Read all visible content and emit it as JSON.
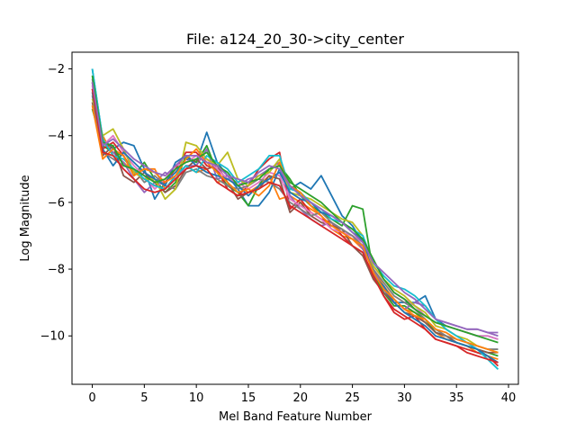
{
  "chart_data": {
    "type": "line",
    "title": "File: a124_20_30->city_center",
    "xlabel": "Mel Band Feature Number",
    "ylabel": "Log Magnitude",
    "xlim": [
      -1.95,
      40.95
    ],
    "ylim": [
      -11.45,
      -1.5
    ],
    "x_ticks": [
      0,
      5,
      10,
      15,
      20,
      25,
      30,
      35,
      40
    ],
    "y_ticks": [
      -10,
      -8,
      -6,
      -4,
      -2
    ],
    "x_tick_labels": [
      "0",
      "5",
      "10",
      "15",
      "20",
      "25",
      "30",
      "35",
      "40"
    ],
    "y_tick_labels": [
      "−10",
      "−8",
      "−6",
      "−4",
      "−2"
    ],
    "grid": false,
    "legend": "none",
    "colors": [
      "#1f77b4",
      "#ff7f0e",
      "#2ca02c",
      "#d62728",
      "#9467bd",
      "#8c564b",
      "#e377c2",
      "#7f7f7f",
      "#bcbd22",
      "#17becf"
    ],
    "x": [
      0,
      1,
      2,
      3,
      4,
      5,
      6,
      7,
      8,
      9,
      10,
      11,
      12,
      13,
      14,
      15,
      16,
      17,
      18,
      19,
      20,
      21,
      22,
      23,
      24,
      25,
      26,
      27,
      28,
      29,
      30,
      31,
      32,
      33,
      34,
      35,
      36,
      37,
      38,
      39
    ],
    "series": [
      {
        "values": [
          -2.0,
          -4.1,
          -4.4,
          -4.2,
          -4.3,
          -5.0,
          -5.9,
          -5.4,
          -5.1,
          -4.7,
          -4.8,
          -3.9,
          -4.8,
          -5.2,
          -5.6,
          -6.1,
          -6.1,
          -5.7,
          -5.0,
          -5.6,
          -5.4,
          -5.6,
          -5.2,
          -5.8,
          -6.4,
          -6.7,
          -7.2,
          -8.1,
          -8.6,
          -9.0,
          -9.0,
          -9.0,
          -8.8,
          -9.5,
          -9.7,
          -9.8,
          -9.9,
          -10.0,
          -10.0,
          -10.1
        ]
      },
      {
        "values": [
          -2.6,
          -4.0,
          -4.6,
          -4.8,
          -5.1,
          -5.0,
          -5.0,
          -5.6,
          -5.2,
          -4.9,
          -5.1,
          -5.0,
          -5.4,
          -5.3,
          -5.5,
          -5.7,
          -5.5,
          -5.2,
          -5.9,
          -5.8,
          -6.0,
          -6.2,
          -6.4,
          -6.8,
          -7.0,
          -7.1,
          -7.4,
          -8.0,
          -8.5,
          -8.9,
          -9.2,
          -9.3,
          -9.6,
          -9.9,
          -10.1,
          -10.2,
          -10.3,
          -10.5,
          -10.6,
          -10.7
        ]
      },
      {
        "values": [
          -3.2,
          -4.3,
          -4.5,
          -4.6,
          -5.2,
          -4.8,
          -5.3,
          -5.7,
          -5.4,
          -4.6,
          -4.8,
          -4.3,
          -5.1,
          -5.5,
          -5.7,
          -6.1,
          -5.5,
          -5.0,
          -4.9,
          -5.3,
          -5.8,
          -6.1,
          -6.3,
          -6.5,
          -6.7,
          -6.1,
          -6.2,
          -8.1,
          -8.7,
          -9.1,
          -9.1,
          -9.3,
          -9.5,
          -9.9,
          -10.0,
          -10.2,
          -10.3,
          -10.4,
          -10.5,
          -10.6
        ]
      },
      {
        "values": [
          -2.4,
          -4.4,
          -4.2,
          -4.6,
          -5.1,
          -5.3,
          -5.5,
          -5.4,
          -5.0,
          -4.5,
          -4.5,
          -4.9,
          -5.0,
          -5.6,
          -5.8,
          -5.5,
          -5.0,
          -4.7,
          -4.5,
          -6.2,
          -5.9,
          -6.3,
          -6.5,
          -6.6,
          -7.0,
          -7.3,
          -7.5,
          -8.2,
          -8.8,
          -9.3,
          -9.5,
          -9.4,
          -9.8,
          -10.1,
          -10.2,
          -10.3,
          -10.4,
          -10.5,
          -10.6,
          -10.9
        ]
      },
      {
        "values": [
          -2.3,
          -4.2,
          -4.5,
          -4.8,
          -5.3,
          -5.7,
          -5.4,
          -5.1,
          -5.3,
          -4.9,
          -4.9,
          -4.4,
          -5.3,
          -5.2,
          -5.5,
          -5.3,
          -5.2,
          -5.0,
          -4.8,
          -5.8,
          -6.2,
          -6.5,
          -6.7,
          -6.6,
          -6.9,
          -7.0,
          -7.4,
          -8.0,
          -8.6,
          -8.9,
          -9.2,
          -9.0,
          -9.1,
          -9.5,
          -9.6,
          -9.7,
          -9.8,
          -9.8,
          -9.9,
          -10.0
        ]
      },
      {
        "values": [
          -3.0,
          -4.6,
          -4.3,
          -5.2,
          -5.4,
          -5.1,
          -5.4,
          -5.7,
          -5.5,
          -5.0,
          -4.7,
          -5.0,
          -4.9,
          -5.4,
          -5.9,
          -5.7,
          -5.6,
          -5.2,
          -5.3,
          -6.3,
          -6.0,
          -6.4,
          -6.6,
          -6.7,
          -6.8,
          -7.3,
          -7.6,
          -8.3,
          -8.7,
          -9.0,
          -9.3,
          -9.4,
          -9.6,
          -9.9,
          -10.0,
          -10.2,
          -10.3,
          -10.4,
          -10.5,
          -10.5
        ]
      },
      {
        "values": [
          -2.5,
          -4.3,
          -4.0,
          -4.5,
          -4.9,
          -5.2,
          -5.6,
          -5.3,
          -4.9,
          -4.8,
          -4.6,
          -4.7,
          -5.0,
          -5.3,
          -5.4,
          -5.6,
          -5.4,
          -5.1,
          -5.2,
          -5.9,
          -6.1,
          -6.3,
          -6.5,
          -6.8,
          -6.9,
          -7.0,
          -7.2,
          -7.9,
          -8.3,
          -8.7,
          -8.9,
          -9.1,
          -9.4,
          -9.6,
          -9.7,
          -9.8,
          -9.9,
          -10.0,
          -10.0,
          -10.1
        ]
      },
      {
        "values": [
          -2.8,
          -4.5,
          -4.7,
          -4.9,
          -5.0,
          -5.4,
          -5.2,
          -5.5,
          -5.6,
          -5.1,
          -5.0,
          -5.2,
          -5.3,
          -5.5,
          -5.6,
          -5.5,
          -5.3,
          -5.4,
          -5.6,
          -6.0,
          -6.2,
          -6.4,
          -6.3,
          -6.6,
          -6.8,
          -7.0,
          -7.3,
          -8.0,
          -8.4,
          -8.8,
          -9.0,
          -9.2,
          -9.5,
          -9.8,
          -10.0,
          -10.1,
          -10.2,
          -10.3,
          -10.4,
          -10.4
        ]
      },
      {
        "values": [
          -2.9,
          -4.0,
          -3.8,
          -4.4,
          -5.1,
          -5.3,
          -5.3,
          -5.9,
          -5.6,
          -4.2,
          -4.3,
          -4.7,
          -4.9,
          -4.5,
          -5.3,
          -5.5,
          -5.2,
          -5.1,
          -4.7,
          -5.7,
          -5.8,
          -5.9,
          -6.1,
          -6.3,
          -6.5,
          -6.6,
          -7.0,
          -7.9,
          -8.3,
          -8.6,
          -8.8,
          -9.1,
          -9.3,
          -9.7,
          -9.8,
          -10.0,
          -10.1,
          -10.3,
          -10.4,
          -10.5
        ]
      },
      {
        "values": [
          -2.0,
          -4.1,
          -4.6,
          -4.7,
          -5.0,
          -5.3,
          -5.5,
          -5.6,
          -5.2,
          -4.9,
          -5.1,
          -4.6,
          -4.8,
          -5.0,
          -5.4,
          -5.2,
          -5.0,
          -4.6,
          -4.6,
          -5.6,
          -5.7,
          -6.0,
          -6.2,
          -6.5,
          -6.6,
          -6.8,
          -7.0,
          -7.8,
          -8.2,
          -8.5,
          -8.6,
          -8.8,
          -9.1,
          -9.5,
          -9.8,
          -10.0,
          -10.2,
          -10.4,
          -10.7,
          -11.0
        ]
      },
      {
        "values": [
          -2.7,
          -4.4,
          -4.9,
          -4.5,
          -4.8,
          -5.1,
          -5.3,
          -5.5,
          -4.8,
          -4.6,
          -4.9,
          -5.1,
          -5.2,
          -5.3,
          -5.5,
          -5.8,
          -5.5,
          -5.3,
          -5.1,
          -5.7,
          -5.9,
          -6.0,
          -6.3,
          -6.4,
          -6.6,
          -6.9,
          -7.1,
          -8.2,
          -8.5,
          -9.0,
          -9.3,
          -9.5,
          -9.7,
          -10.0,
          -10.1,
          -10.2,
          -10.3,
          -10.4,
          -10.6,
          -10.8
        ]
      },
      {
        "values": [
          -3.1,
          -4.7,
          -4.4,
          -4.6,
          -5.2,
          -5.0,
          -5.1,
          -5.4,
          -5.2,
          -4.7,
          -4.4,
          -4.8,
          -5.1,
          -5.4,
          -5.7,
          -5.6,
          -5.8,
          -5.5,
          -4.8,
          -5.5,
          -5.7,
          -6.1,
          -6.4,
          -6.7,
          -6.9,
          -7.1,
          -7.3,
          -8.1,
          -8.6,
          -8.9,
          -9.2,
          -9.4,
          -9.5,
          -9.8,
          -9.9,
          -10.1,
          -10.2,
          -10.3,
          -10.4,
          -10.5
        ]
      },
      {
        "values": [
          -2.2,
          -4.2,
          -4.3,
          -4.9,
          -5.0,
          -5.2,
          -5.4,
          -5.3,
          -5.0,
          -4.8,
          -4.7,
          -4.5,
          -4.9,
          -5.1,
          -5.5,
          -5.4,
          -5.3,
          -5.0,
          -4.9,
          -5.4,
          -5.6,
          -5.8,
          -6.0,
          -6.3,
          -6.6,
          -6.8,
          -7.1,
          -7.7,
          -8.3,
          -8.7,
          -8.9,
          -9.2,
          -9.4,
          -9.6,
          -9.7,
          -9.8,
          -9.9,
          -10.0,
          -10.1,
          -10.2
        ]
      },
      {
        "values": [
          -2.6,
          -4.5,
          -4.6,
          -5.0,
          -5.3,
          -5.6,
          -5.7,
          -5.6,
          -5.3,
          -5.0,
          -4.9,
          -5.0,
          -5.4,
          -5.6,
          -5.8,
          -5.7,
          -5.6,
          -5.4,
          -5.5,
          -6.1,
          -6.3,
          -6.5,
          -6.7,
          -6.9,
          -7.1,
          -7.3,
          -7.5,
          -8.2,
          -8.8,
          -9.2,
          -9.4,
          -9.6,
          -9.8,
          -10.1,
          -10.2,
          -10.3,
          -10.5,
          -10.6,
          -10.7,
          -10.8
        ]
      },
      {
        "values": [
          -2.4,
          -4.3,
          -4.1,
          -4.4,
          -4.7,
          -4.9,
          -5.1,
          -5.2,
          -4.9,
          -4.6,
          -4.6,
          -4.8,
          -4.9,
          -5.2,
          -5.3,
          -5.4,
          -5.1,
          -4.9,
          -5.0,
          -5.5,
          -5.8,
          -6.0,
          -6.2,
          -6.4,
          -6.6,
          -6.9,
          -7.2,
          -7.8,
          -8.1,
          -8.4,
          -8.7,
          -8.9,
          -9.2,
          -9.5,
          -9.6,
          -9.7,
          -9.8,
          -9.8,
          -9.9,
          -9.9
        ]
      }
    ]
  }
}
